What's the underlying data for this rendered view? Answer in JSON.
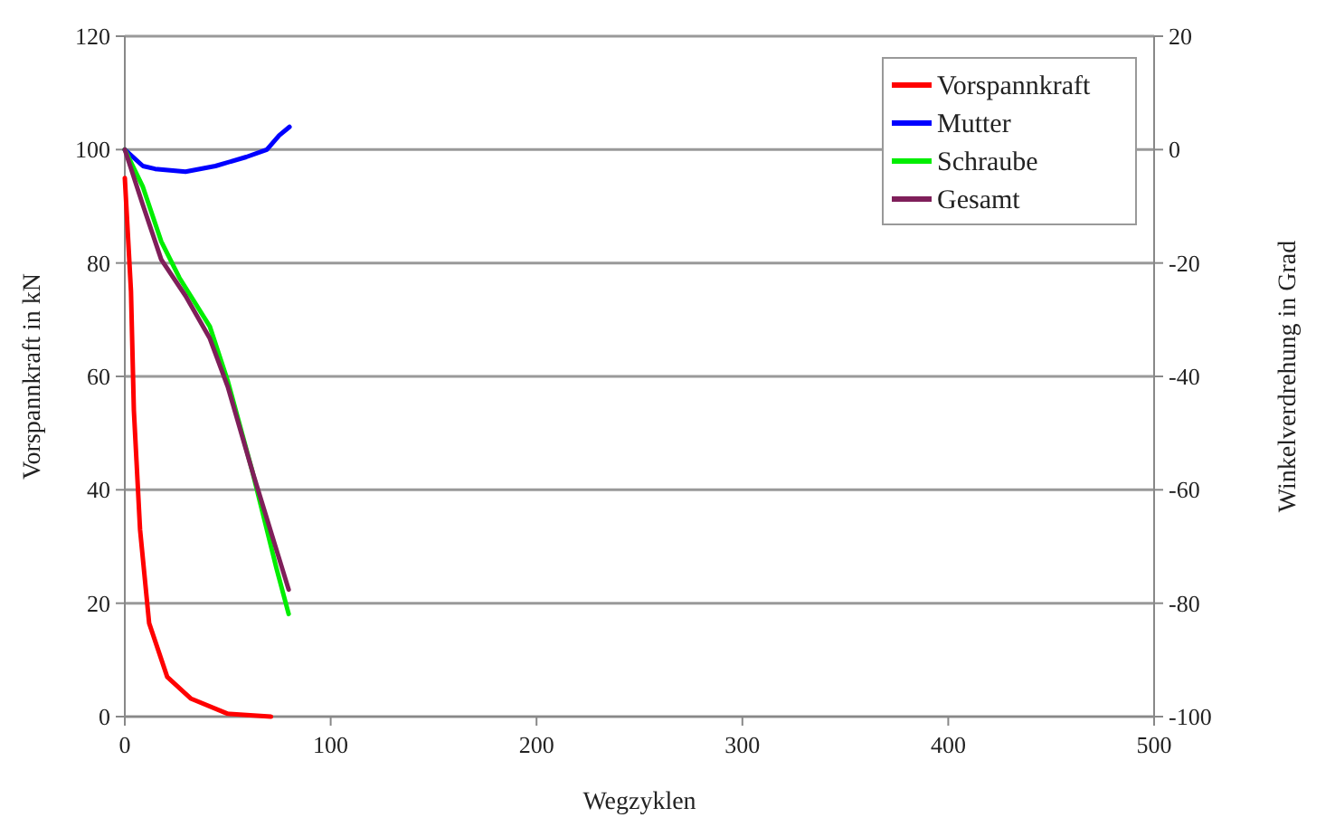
{
  "chart_data": {
    "type": "line",
    "xlabel": "Wegzyklen",
    "ylabel": "Vorspannkraft in kN",
    "y2label": "Winkelverdrehung in Grad",
    "xlim": [
      0,
      500
    ],
    "xticks": [
      0,
      100,
      200,
      300,
      400,
      500
    ],
    "ylim": [
      0,
      120
    ],
    "yticks": [
      0,
      20,
      40,
      60,
      80,
      100,
      120
    ],
    "y2lim": [
      -100,
      20
    ],
    "y2ticks": [
      -100,
      -80,
      -60,
      -40,
      -20,
      0,
      20
    ],
    "grid": "y",
    "legend": "top right",
    "marker": "none",
    "line_style": "solid",
    "series": [
      {
        "name": "Vorspannkraft",
        "color": "#ff0000",
        "x": [
          0,
          3,
          4.4,
          7.4,
          11.8,
          20.6,
          32,
          50,
          71
        ],
        "values": [
          95,
          75,
          54,
          33,
          16.5,
          7,
          3.2,
          0.5,
          0
        ]
      },
      {
        "name": "Mutter",
        "color": "#0000ff",
        "axis": "y2",
        "x": [
          0,
          8.8,
          14.7,
          29.5,
          44,
          59,
          69,
          75,
          80
        ],
        "values": [
          0,
          -2.9,
          -3.4,
          -3.9,
          -2.9,
          -1.3,
          0,
          2.5,
          4
        ]
      },
      {
        "name": "Schraube",
        "color": "#00ee00",
        "axis": "y2",
        "x": [
          0,
          8.8,
          17.7,
          26.5,
          41.3,
          50,
          62,
          73.7,
          79.6
        ],
        "values": [
          0,
          -6.6,
          -16.2,
          -22.6,
          -31.2,
          -40.8,
          -56.8,
          -73.9,
          -81.9
        ]
      },
      {
        "name": "Gesamt",
        "color": "#7f1f5a",
        "axis": "y2",
        "x": [
          0,
          8.8,
          17.7,
          29.5,
          41.3,
          50,
          62,
          79.6
        ],
        "values": [
          0,
          -9.8,
          -19.4,
          -25.8,
          -33.3,
          -41.8,
          -56.8,
          -77.6
        ]
      }
    ]
  }
}
